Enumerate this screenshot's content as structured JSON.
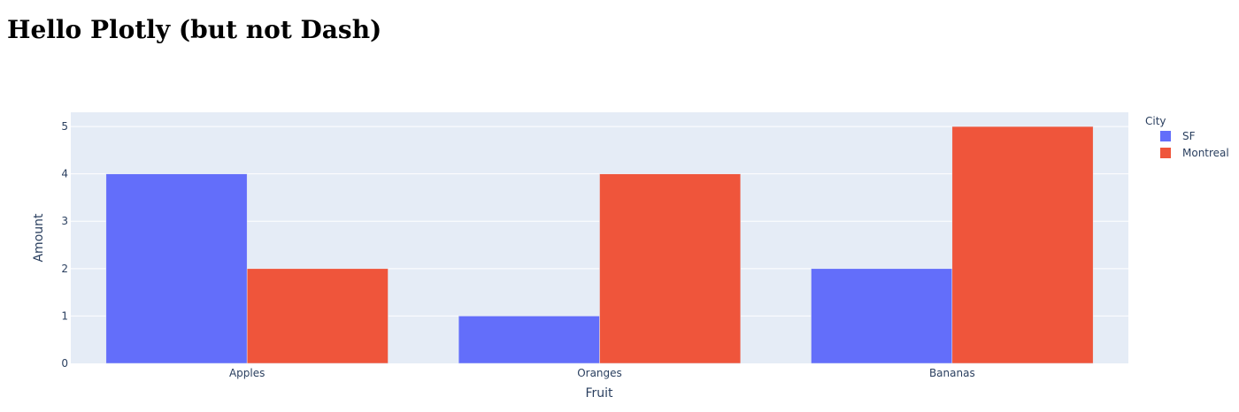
{
  "page": {
    "title": "Hello Plotly (but not Dash)"
  },
  "chart_data": {
    "type": "bar",
    "barmode": "group",
    "categories": [
      "Apples",
      "Oranges",
      "Bananas"
    ],
    "series": [
      {
        "name": "SF",
        "values": [
          4,
          1,
          2
        ],
        "color": "#636efa"
      },
      {
        "name": "Montreal",
        "values": [
          2,
          4,
          5
        ],
        "color": "#ef553b"
      }
    ],
    "xlabel": "Fruit",
    "ylabel": "Amount",
    "ylim": [
      0,
      5.3
    ],
    "yticks": [
      0,
      1,
      2,
      3,
      4,
      5
    ],
    "grid": true,
    "legend": {
      "title": "City",
      "placement": "top-right"
    },
    "plot_background": "#e5ecf6",
    "grid_color": "#ffffff"
  }
}
